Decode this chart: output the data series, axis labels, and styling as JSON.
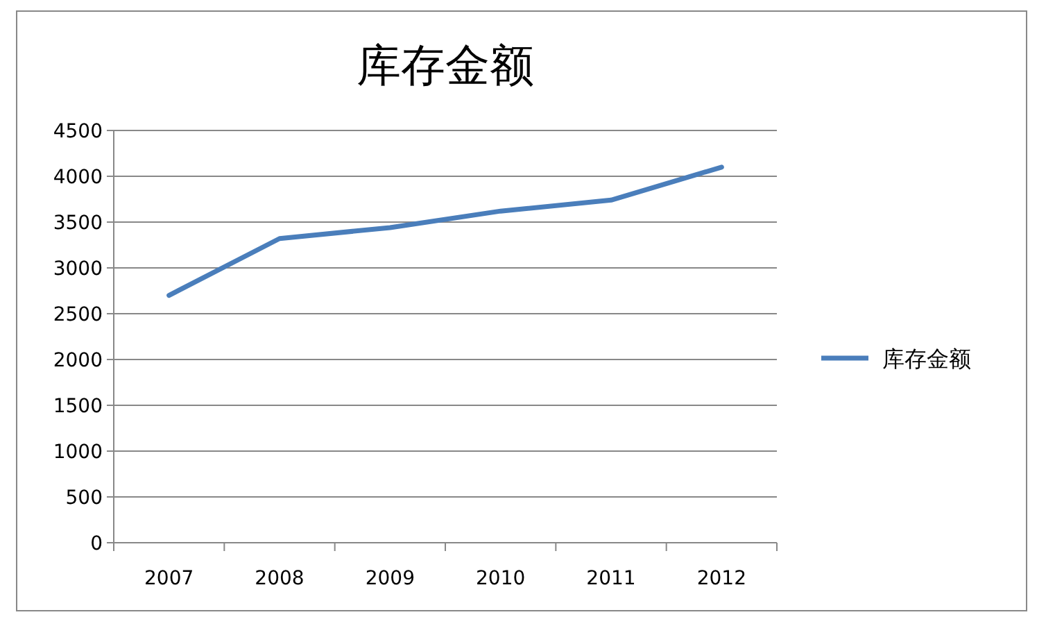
{
  "chart_data": {
    "type": "line",
    "title": "库存金额",
    "categories": [
      "2007",
      "2008",
      "2009",
      "2010",
      "2011",
      "2012"
    ],
    "series": [
      {
        "name": "库存金额",
        "color": "#4a7ebb",
        "values": [
          2700,
          3320,
          3440,
          3620,
          3740,
          4100
        ]
      }
    ],
    "ylim": [
      0,
      4500
    ],
    "yticks": [
      0,
      500,
      1000,
      1500,
      2000,
      2500,
      3000,
      3500,
      4000,
      4500
    ],
    "grid": "y",
    "legend": "right",
    "marker": "none",
    "line_style": "solid"
  }
}
